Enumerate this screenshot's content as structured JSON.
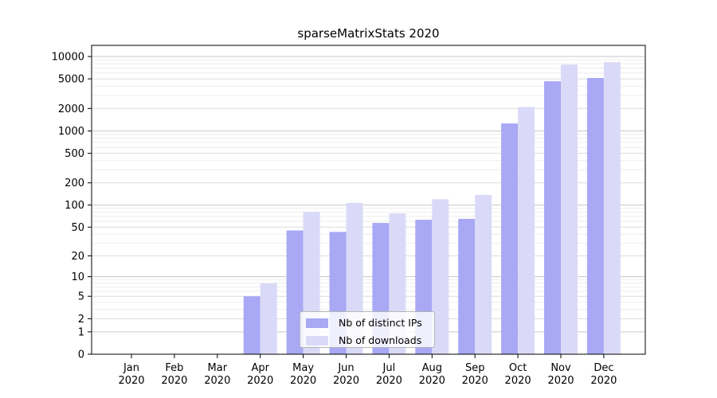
{
  "chart_data": {
    "type": "bar",
    "title": "sparseMatrixStats 2020",
    "categories": [
      "Jan",
      "Feb",
      "Mar",
      "Apr",
      "May",
      "Jun",
      "Jul",
      "Aug",
      "Sep",
      "Oct",
      "Nov",
      "Dec"
    ],
    "year_label": "2020",
    "series": [
      {
        "name": "Nb of distinct IPs",
        "color": "#a8a8f5",
        "values": [
          0,
          0,
          0,
          5,
          45,
          43,
          57,
          63,
          65,
          1260,
          4650,
          5140
        ]
      },
      {
        "name": "Nb of downloads",
        "color": "#dadaf8",
        "values": [
          0,
          0,
          0,
          8,
          81,
          107,
          77,
          120,
          137,
          2100,
          7800,
          8400
        ]
      }
    ],
    "scale": "log10(1+x)",
    "y_ticks": [
      0,
      1,
      2,
      5,
      10,
      20,
      50,
      100,
      200,
      500,
      1000,
      2000,
      5000,
      10000
    ],
    "ylim": [
      0,
      10000
    ],
    "xlabel": "",
    "ylabel": "",
    "grid": true,
    "legend_position": "inside-bottom-center",
    "colors": {
      "grid_decade": "#c8c8c8",
      "grid_labeled": "#dcdcdc",
      "grid_minor": "#eeeeee",
      "axis": "#000000",
      "background": "#ffffff"
    }
  }
}
